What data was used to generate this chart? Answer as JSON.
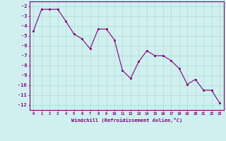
{
  "x": [
    0,
    1,
    2,
    3,
    4,
    5,
    6,
    7,
    8,
    9,
    10,
    11,
    12,
    13,
    14,
    15,
    16,
    17,
    18,
    19,
    20,
    21,
    22,
    23
  ],
  "y": [
    -4.5,
    -2.3,
    -2.3,
    -2.3,
    -3.5,
    -4.8,
    -5.3,
    -6.3,
    -4.3,
    -4.3,
    -5.4,
    -8.5,
    -9.3,
    -7.6,
    -6.5,
    -7.0,
    -7.0,
    -7.5,
    -8.3,
    -9.9,
    -9.4,
    -10.5,
    -10.5,
    -11.8
  ],
  "xlabel": "Windchill (Refroidissement éolien,°C)",
  "ylim": [
    -12.5,
    -1.5
  ],
  "xlim": [
    -0.5,
    23.5
  ],
  "yticks": [
    -2,
    -3,
    -4,
    -5,
    -6,
    -7,
    -8,
    -9,
    -10,
    -11,
    -12
  ],
  "xticks": [
    0,
    1,
    2,
    3,
    4,
    5,
    6,
    7,
    8,
    9,
    10,
    11,
    12,
    13,
    14,
    15,
    16,
    17,
    18,
    19,
    20,
    21,
    22,
    23
  ],
  "line_color": "#800080",
  "marker_color": "#800080",
  "bg_color": "#cff0ee",
  "grid_color": "#b0d8d4"
}
